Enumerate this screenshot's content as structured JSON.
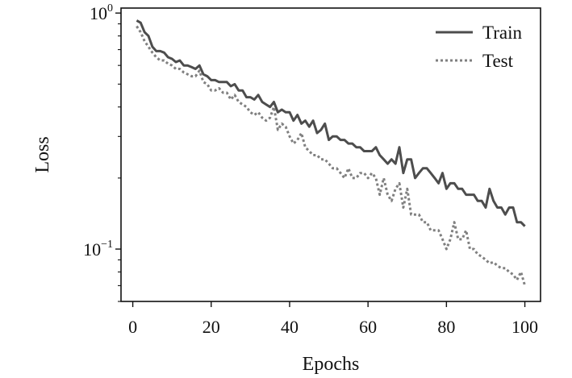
{
  "chart_data": {
    "type": "line",
    "xlabel": "Epochs",
    "ylabel": "Loss",
    "xlim": [
      -3,
      104
    ],
    "xticks": [
      0,
      20,
      40,
      60,
      80,
      100
    ],
    "xtick_labels": [
      "0",
      "20",
      "40",
      "60",
      "80",
      "100"
    ],
    "yscale": "log",
    "ylim": [
      0.06,
      1.05
    ],
    "yticks_major": [
      {
        "value": 1.0,
        "base": "10",
        "exp": "0"
      },
      {
        "value": 0.1,
        "base": "10",
        "exp": "−1"
      }
    ],
    "yticks_minor": [
      0.06,
      0.07,
      0.08,
      0.09,
      0.2,
      0.3,
      0.4,
      0.5,
      0.6,
      0.7,
      0.8,
      0.9
    ],
    "grid": false,
    "legend_position": "top-right",
    "x": [
      1,
      2,
      3,
      4,
      5,
      6,
      7,
      8,
      9,
      10,
      11,
      12,
      13,
      14,
      15,
      16,
      17,
      18,
      19,
      20,
      21,
      22,
      23,
      24,
      25,
      26,
      27,
      28,
      29,
      30,
      31,
      32,
      33,
      34,
      35,
      36,
      37,
      38,
      39,
      40,
      41,
      42,
      43,
      44,
      45,
      46,
      47,
      48,
      49,
      50,
      51,
      52,
      53,
      54,
      55,
      56,
      57,
      58,
      59,
      60,
      61,
      62,
      63,
      64,
      65,
      66,
      67,
      68,
      69,
      70,
      71,
      72,
      73,
      74,
      75,
      76,
      77,
      78,
      79,
      80,
      81,
      82,
      83,
      84,
      85,
      86,
      87,
      88,
      89,
      90,
      91,
      92,
      93,
      94,
      95,
      96,
      97,
      98,
      99,
      100
    ],
    "series": [
      {
        "name": "Train",
        "color": "#4d4d4d",
        "style": "solid",
        "values": [
          0.93,
          0.91,
          0.83,
          0.8,
          0.72,
          0.69,
          0.69,
          0.68,
          0.65,
          0.64,
          0.62,
          0.63,
          0.6,
          0.6,
          0.59,
          0.58,
          0.6,
          0.55,
          0.54,
          0.52,
          0.52,
          0.51,
          0.51,
          0.51,
          0.49,
          0.5,
          0.47,
          0.47,
          0.44,
          0.44,
          0.43,
          0.45,
          0.42,
          0.41,
          0.4,
          0.42,
          0.38,
          0.39,
          0.38,
          0.38,
          0.35,
          0.37,
          0.34,
          0.35,
          0.33,
          0.35,
          0.31,
          0.32,
          0.34,
          0.29,
          0.3,
          0.3,
          0.29,
          0.29,
          0.28,
          0.28,
          0.27,
          0.27,
          0.26,
          0.26,
          0.26,
          0.27,
          0.25,
          0.24,
          0.23,
          0.24,
          0.23,
          0.27,
          0.21,
          0.24,
          0.24,
          0.2,
          0.21,
          0.22,
          0.22,
          0.21,
          0.2,
          0.19,
          0.21,
          0.18,
          0.19,
          0.19,
          0.18,
          0.18,
          0.17,
          0.17,
          0.17,
          0.16,
          0.16,
          0.15,
          0.18,
          0.16,
          0.15,
          0.15,
          0.14,
          0.15,
          0.15,
          0.13,
          0.13,
          0.125
        ]
      },
      {
        "name": "Test",
        "color": "#808080",
        "style": "dotted",
        "values": [
          0.88,
          0.83,
          0.76,
          0.72,
          0.68,
          0.65,
          0.63,
          0.63,
          0.61,
          0.6,
          0.58,
          0.58,
          0.56,
          0.55,
          0.54,
          0.54,
          0.57,
          0.51,
          0.5,
          0.47,
          0.47,
          0.48,
          0.46,
          0.46,
          0.43,
          0.45,
          0.42,
          0.41,
          0.4,
          0.38,
          0.37,
          0.38,
          0.36,
          0.35,
          0.36,
          0.4,
          0.32,
          0.34,
          0.33,
          0.3,
          0.28,
          0.29,
          0.31,
          0.27,
          0.26,
          0.25,
          0.25,
          0.24,
          0.24,
          0.23,
          0.22,
          0.22,
          0.21,
          0.2,
          0.22,
          0.2,
          0.2,
          0.21,
          0.21,
          0.2,
          0.21,
          0.2,
          0.17,
          0.2,
          0.17,
          0.16,
          0.18,
          0.19,
          0.15,
          0.18,
          0.14,
          0.14,
          0.14,
          0.13,
          0.13,
          0.12,
          0.12,
          0.12,
          0.11,
          0.1,
          0.11,
          0.13,
          0.11,
          0.11,
          0.12,
          0.1,
          0.1,
          0.095,
          0.093,
          0.09,
          0.087,
          0.088,
          0.085,
          0.083,
          0.083,
          0.08,
          0.078,
          0.074,
          0.08,
          0.07
        ]
      }
    ]
  }
}
